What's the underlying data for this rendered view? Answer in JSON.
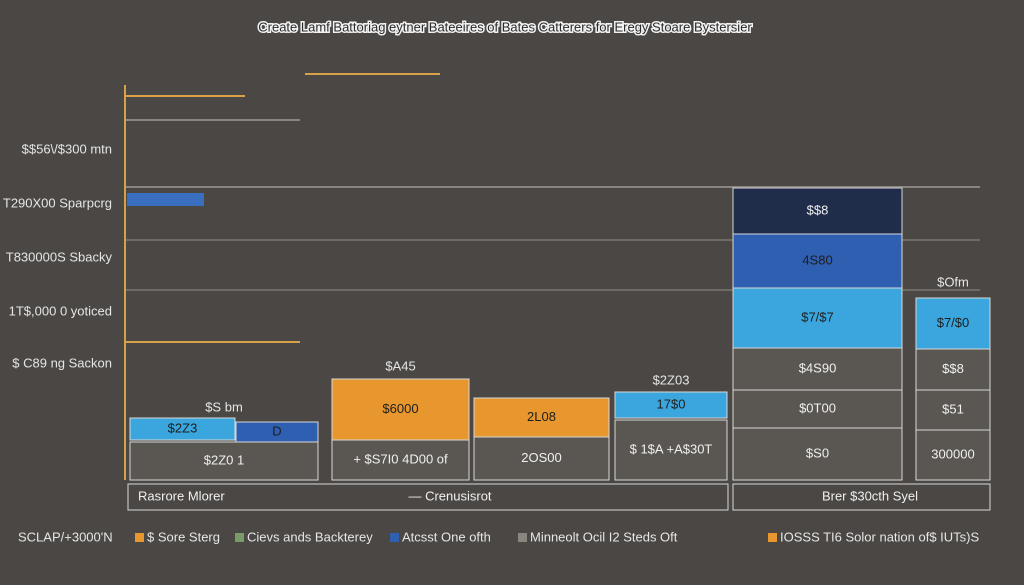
{
  "title": "Create Lamf Battoriag eytner Bateeires of Bates Catterers for Eregy Stoare Bystersier",
  "y_labels": [
    "$$56\\/$300 mtn",
    "T290X00 Sparpcrg",
    "T830000S Sbacky",
    "1T$,000 0 yoticed",
    "$ C89 ng Sackon"
  ],
  "groups": [
    {
      "top": "$S bm",
      "segments": [
        "$2Z3",
        "D",
        "$2Z0 1"
      ]
    },
    {
      "top": "$A45",
      "segments": [
        "$6000",
        "+ $S7I0 4D00 of"
      ]
    },
    {
      "segments": [
        "2L08",
        "2OS00"
      ]
    },
    {
      "top": "$2Z03",
      "segments": [
        "17$0",
        "$ 1$A +A$30T"
      ]
    },
    {
      "segments": [
        "$$8",
        "4S80",
        "$7/$7",
        "$4S90",
        "$0T00",
        "$S0"
      ]
    },
    {
      "top": "$Ofm",
      "segments": [
        "$7/$0",
        "$$8",
        "$51",
        "300000"
      ]
    }
  ],
  "footer": [
    "Rasrore Mlorer",
    "— Crenusisrot",
    "Brer $30cth Syel"
  ],
  "legend": [
    "SCLAP/+3000'N",
    "$ Sore Sterg",
    "Cievs ands Backterey",
    "Atcsst One ofth",
    "Minneolt Ocil I2 Steds Oft",
    "IOSSS TI6 Solor nation of$ IUTs)S"
  ]
}
